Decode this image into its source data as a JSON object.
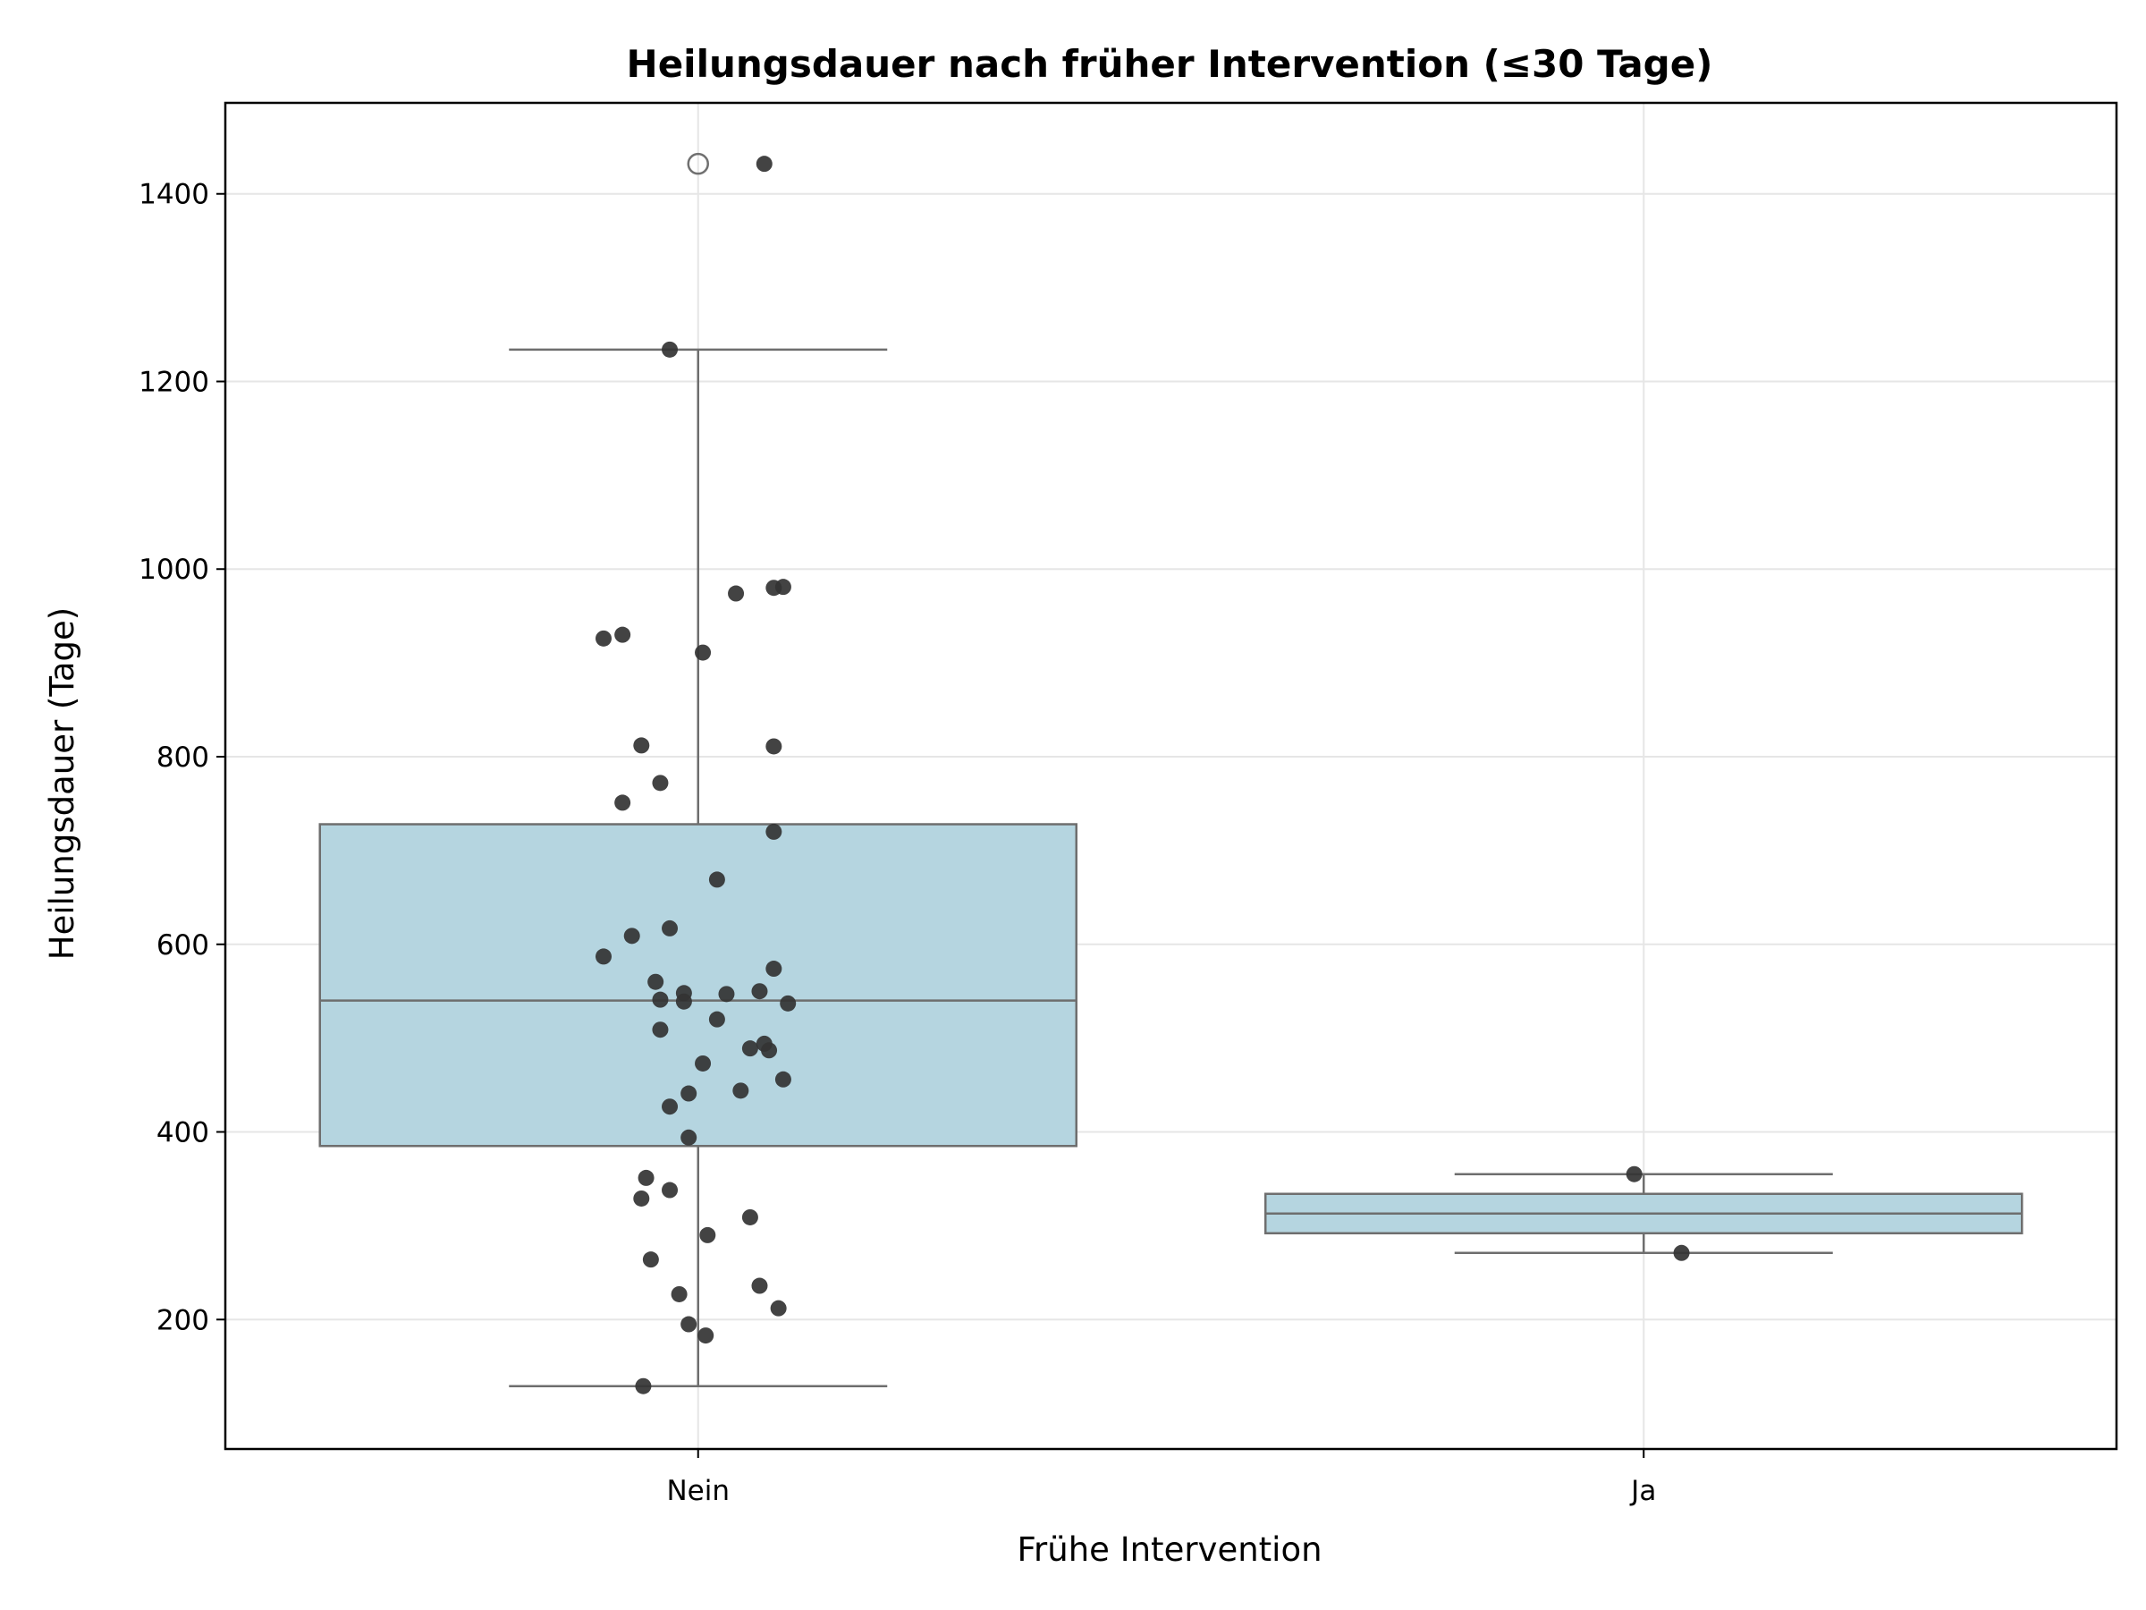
{
  "chart_data": {
    "type": "box",
    "title": "Heilungsdauer nach früher Intervention (≤30 Tage)",
    "xlabel": "Frühe Intervention",
    "ylabel": "Heilungsdauer (Tage)",
    "ylim": [
      62,
      1497
    ],
    "yticks": [
      200,
      400,
      600,
      800,
      1000,
      1200,
      1400
    ],
    "grid": true,
    "colors": {
      "box_fill": "#b5d5e0",
      "box_edge": "#6e6e6e",
      "points": "#333333"
    },
    "categories": [
      "Nein",
      "Ja"
    ],
    "boxes": [
      {
        "category": "Nein",
        "whisker_low": 129,
        "q1": 385,
        "median": 540,
        "q3": 728,
        "whisker_high": 1234,
        "fliers": [
          1432
        ]
      },
      {
        "category": "Ja",
        "whisker_low": 271,
        "q1": 292,
        "median": 313,
        "q3": 334,
        "whisker_high": 355,
        "fliers": []
      }
    ],
    "points": [
      {
        "category": "Nein",
        "jitter": 0.07,
        "y": 1432
      },
      {
        "category": "Nein",
        "jitter": -0.03,
        "y": 1234
      },
      {
        "category": "Nein",
        "jitter": 0.09,
        "y": 981
      },
      {
        "category": "Nein",
        "jitter": 0.08,
        "y": 980
      },
      {
        "category": "Nein",
        "jitter": 0.04,
        "y": 974
      },
      {
        "category": "Nein",
        "jitter": -0.08,
        "y": 930
      },
      {
        "category": "Nein",
        "jitter": -0.1,
        "y": 926
      },
      {
        "category": "Nein",
        "jitter": 0.005,
        "y": 911
      },
      {
        "category": "Nein",
        "jitter": -0.06,
        "y": 812
      },
      {
        "category": "Nein",
        "jitter": 0.08,
        "y": 811
      },
      {
        "category": "Nein",
        "jitter": -0.04,
        "y": 772
      },
      {
        "category": "Nein",
        "jitter": -0.08,
        "y": 751
      },
      {
        "category": "Nein",
        "jitter": 0.08,
        "y": 720
      },
      {
        "category": "Nein",
        "jitter": 0.02,
        "y": 669
      },
      {
        "category": "Nein",
        "jitter": -0.03,
        "y": 617
      },
      {
        "category": "Nein",
        "jitter": -0.07,
        "y": 609
      },
      {
        "category": "Nein",
        "jitter": -0.1,
        "y": 587
      },
      {
        "category": "Nein",
        "jitter": 0.08,
        "y": 574
      },
      {
        "category": "Nein",
        "jitter": -0.045,
        "y": 560
      },
      {
        "category": "Nein",
        "jitter": 0.065,
        "y": 550
      },
      {
        "category": "Nein",
        "jitter": -0.015,
        "y": 548
      },
      {
        "category": "Nein",
        "jitter": 0.03,
        "y": 547
      },
      {
        "category": "Nein",
        "jitter": -0.04,
        "y": 541
      },
      {
        "category": "Nein",
        "jitter": -0.015,
        "y": 539
      },
      {
        "category": "Nein",
        "jitter": 0.095,
        "y": 537
      },
      {
        "category": "Nein",
        "jitter": 0.02,
        "y": 520
      },
      {
        "category": "Nein",
        "jitter": -0.04,
        "y": 509
      },
      {
        "category": "Nein",
        "jitter": 0.07,
        "y": 494
      },
      {
        "category": "Nein",
        "jitter": 0.055,
        "y": 489
      },
      {
        "category": "Nein",
        "jitter": 0.075,
        "y": 487
      },
      {
        "category": "Nein",
        "jitter": 0.005,
        "y": 473
      },
      {
        "category": "Nein",
        "jitter": 0.09,
        "y": 456
      },
      {
        "category": "Nein",
        "jitter": 0.045,
        "y": 444
      },
      {
        "category": "Nein",
        "jitter": -0.01,
        "y": 441
      },
      {
        "category": "Nein",
        "jitter": -0.03,
        "y": 427
      },
      {
        "category": "Nein",
        "jitter": -0.01,
        "y": 394
      },
      {
        "category": "Nein",
        "jitter": -0.055,
        "y": 351
      },
      {
        "category": "Nein",
        "jitter": -0.03,
        "y": 338
      },
      {
        "category": "Nein",
        "jitter": -0.06,
        "y": 329
      },
      {
        "category": "Nein",
        "jitter": 0.055,
        "y": 309
      },
      {
        "category": "Nein",
        "jitter": 0.01,
        "y": 290
      },
      {
        "category": "Nein",
        "jitter": -0.05,
        "y": 264
      },
      {
        "category": "Nein",
        "jitter": 0.065,
        "y": 236
      },
      {
        "category": "Nein",
        "jitter": -0.02,
        "y": 227
      },
      {
        "category": "Nein",
        "jitter": 0.085,
        "y": 212
      },
      {
        "category": "Nein",
        "jitter": -0.01,
        "y": 195
      },
      {
        "category": "Nein",
        "jitter": 0.008,
        "y": 183
      },
      {
        "category": "Nein",
        "jitter": -0.058,
        "y": 129
      },
      {
        "category": "Ja",
        "jitter": -0.01,
        "y": 355
      },
      {
        "category": "Ja",
        "jitter": 0.04,
        "y": 271
      }
    ]
  }
}
